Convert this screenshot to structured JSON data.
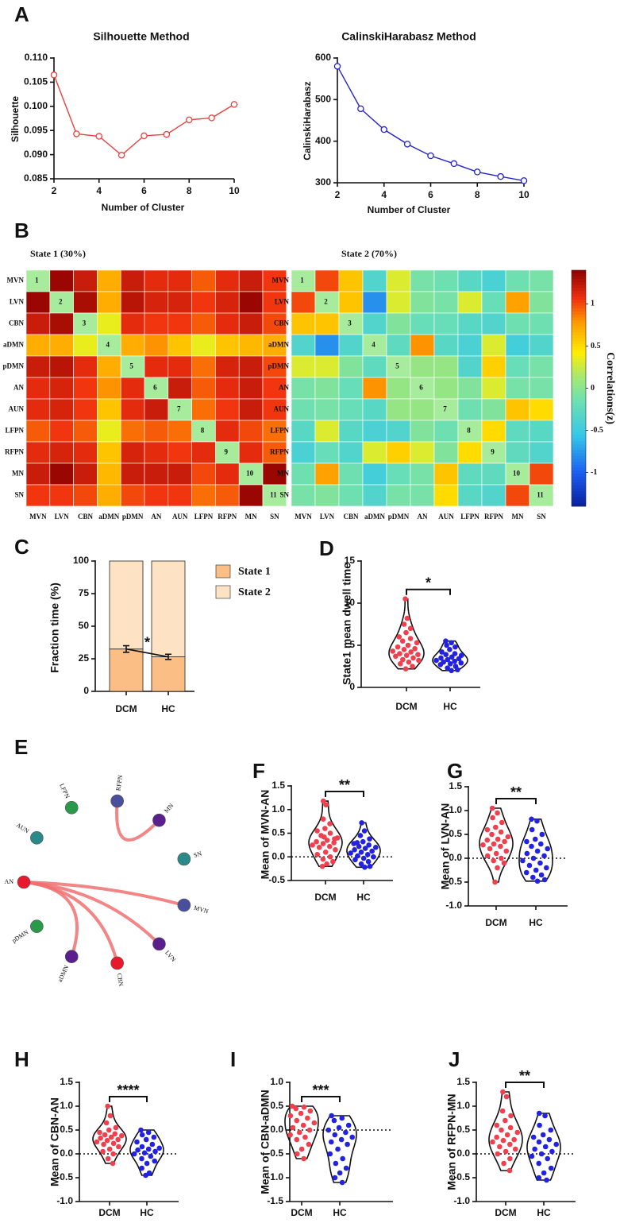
{
  "chart_data": [
    {
      "type": "line",
      "label": "A",
      "title": "Silhouette Method",
      "xlabel": "Number of Cluster",
      "ylabel": "Silhouette",
      "x": [
        2,
        3,
        4,
        5,
        6,
        7,
        8,
        9,
        10
      ],
      "values": [
        0.1065,
        0.0943,
        0.0938,
        0.0899,
        0.0939,
        0.0942,
        0.0972,
        0.0976,
        0.1004
      ],
      "color": "#e8413e",
      "xlim": [
        2,
        10
      ],
      "xticks": [
        2,
        4,
        6,
        8,
        10
      ],
      "ylim": [
        0.085,
        0.11
      ],
      "yticks": [
        0.085,
        {
          "value": 0.09,
          "label": "0.090"
        },
        0.095,
        {
          "value": 0.1,
          "label": "0.100"
        },
        0.105,
        {
          "value": 0.11,
          "label": "0.110"
        }
      ]
    },
    {
      "type": "line",
      "title": "CalinskiHarabasz Method",
      "xlabel": "Number of Cluster",
      "ylabel": "CalinskiHarabasz",
      "x": [
        2,
        3,
        4,
        5,
        6,
        7,
        8,
        9,
        10
      ],
      "values": [
        580,
        478,
        428,
        393,
        365,
        346,
        326,
        315,
        305
      ],
      "color": "#2323c8",
      "xlim": [
        2,
        10
      ],
      "xticks": [
        2,
        4,
        6,
        8,
        10
      ],
      "ylim": [
        300,
        600
      ],
      "yticks": [
        300,
        400,
        500,
        600
      ]
    },
    {
      "type": "heatmap",
      "label": "B",
      "title": "State 1 (30%)",
      "labels": [
        "MVN",
        "LVN",
        "CBN",
        "aDMN",
        "pDMN",
        "AN",
        "AUN",
        "LFPN",
        "RFPN",
        "MN",
        "SN"
      ],
      "diagonal_labels": [
        1,
        2,
        3,
        4,
        5,
        6,
        7,
        8,
        9,
        10,
        11
      ],
      "clim": [
        -1.4,
        1.4
      ],
      "matrix": [
        [
          null,
          1.35,
          1.2,
          0.7,
          1.2,
          1.1,
          1.1,
          0.95,
          1.1,
          1.2,
          1.05
        ],
        [
          1.35,
          null,
          1.3,
          0.7,
          1.25,
          1.15,
          1.15,
          1.05,
          1.15,
          1.35,
          1.05
        ],
        [
          1.2,
          1.3,
          null,
          0.35,
          1.1,
          1.05,
          1.05,
          0.95,
          1.1,
          1.2,
          1.0
        ],
        [
          0.7,
          0.7,
          0.35,
          null,
          0.7,
          0.8,
          0.6,
          0.35,
          0.6,
          0.65,
          0.7
        ],
        [
          1.2,
          1.25,
          1.1,
          0.7,
          null,
          1.1,
          1.1,
          0.9,
          1.15,
          1.2,
          1.0
        ],
        [
          1.1,
          1.15,
          1.05,
          0.8,
          1.1,
          null,
          1.2,
          0.95,
          1.1,
          1.2,
          1.05
        ],
        [
          1.1,
          1.15,
          1.05,
          0.6,
          1.1,
          1.2,
          null,
          0.9,
          1.05,
          1.2,
          1.05
        ],
        [
          0.95,
          1.05,
          0.95,
          0.35,
          0.9,
          0.95,
          0.9,
          null,
          1.1,
          1.0,
          0.9
        ],
        [
          1.1,
          1.15,
          1.1,
          0.6,
          1.15,
          1.1,
          1.05,
          1.1,
          null,
          1.1,
          0.95
        ],
        [
          1.2,
          1.35,
          1.2,
          0.65,
          1.2,
          1.2,
          1.2,
          1.0,
          1.1,
          null,
          1.35
        ],
        [
          1.05,
          1.05,
          1.0,
          0.7,
          1.0,
          1.05,
          1.05,
          0.9,
          0.95,
          1.35,
          null
        ]
      ]
    },
    {
      "type": "heatmap",
      "title": "State 2 (70%)",
      "labels": [
        "MVN",
        "LVN",
        "CBN",
        "aDMN",
        "pDMN",
        "AN",
        "AUN",
        "LFPN",
        "RFPN",
        "MN",
        "SN"
      ],
      "diagonal_labels": [
        1,
        2,
        3,
        4,
        5,
        6,
        7,
        8,
        9,
        10,
        11
      ],
      "clim": [
        -1.4,
        1.4
      ],
      "colorbar": {
        "label": "Correlations(z)",
        "ticks": [
          -1,
          -0.5,
          0,
          0.5,
          1
        ]
      },
      "matrix": [
        [
          null,
          1.0,
          0.6,
          -0.35,
          0.3,
          -0.1,
          -0.15,
          -0.3,
          -0.4,
          -0.15,
          -0.1
        ],
        [
          1.0,
          null,
          0.6,
          -0.8,
          0.3,
          -0.05,
          -0.1,
          0.3,
          -0.2,
          0.75,
          -0.05
        ],
        [
          0.6,
          0.6,
          null,
          -0.35,
          -0.05,
          -0.2,
          -0.2,
          -0.3,
          -0.35,
          -0.15,
          -0.15
        ],
        [
          -0.35,
          -0.8,
          -0.35,
          null,
          -0.25,
          0.8,
          -0.3,
          -0.4,
          0.3,
          -0.45,
          -0.35
        ],
        [
          0.3,
          0.3,
          -0.05,
          -0.25,
          null,
          0.05,
          0.05,
          -0.35,
          0.55,
          -0.2,
          -0.1
        ],
        [
          -0.1,
          -0.05,
          -0.2,
          0.8,
          0.05,
          null,
          0.05,
          -0.05,
          0.3,
          -0.1,
          -0.1
        ],
        [
          -0.15,
          -0.1,
          -0.2,
          -0.3,
          0.05,
          0.05,
          null,
          -0.15,
          -0.05,
          0.6,
          0.5
        ],
        [
          -0.3,
          0.3,
          -0.3,
          -0.4,
          -0.35,
          -0.05,
          -0.15,
          null,
          0.5,
          -0.25,
          -0.3
        ],
        [
          -0.4,
          -0.2,
          -0.35,
          0.3,
          0.55,
          0.3,
          -0.05,
          0.5,
          null,
          -0.25,
          -0.35
        ],
        [
          -0.15,
          0.75,
          -0.15,
          -0.45,
          -0.2,
          -0.1,
          0.6,
          -0.25,
          -0.25,
          null,
          1.0
        ],
        [
          -0.1,
          -0.05,
          -0.15,
          -0.35,
          -0.1,
          -0.1,
          0.5,
          -0.3,
          -0.35,
          1.0,
          null
        ]
      ]
    },
    {
      "type": "stacked_bar",
      "label": "C",
      "ylabel": "Fraction time (%)",
      "categories": [
        "DCM",
        "HC"
      ],
      "series": [
        {
          "name": "State 1",
          "color": "#fbbf86",
          "values": [
            32.5,
            26.5
          ],
          "errors": [
            2.5,
            2
          ]
        },
        {
          "name": "State 2",
          "color": "#fde3c4",
          "values": [
            67.5,
            73.5
          ]
        }
      ],
      "ylim": [
        0,
        100
      ],
      "yticks": [
        0,
        25,
        50,
        75,
        100
      ],
      "annotation": "*"
    },
    {
      "type": "violin",
      "label": "D",
      "ylabel": "State1 mean dwell time",
      "categories": [
        "DCM",
        "HC"
      ],
      "annotation": "*",
      "ylim": [
        0,
        15
      ],
      "yticks": [
        0,
        5,
        10,
        15
      ],
      "zero_line": false,
      "groups": [
        {
          "color": "#f0404e",
          "values": [
            10.5,
            8.2,
            7.5,
            7,
            6.5,
            6,
            5.8,
            5.5,
            5.3,
            5,
            4.8,
            4.6,
            4.5,
            4.3,
            4.2,
            4,
            3.9,
            3.8,
            3.7,
            3.5,
            3.3,
            3.2,
            3,
            2.8,
            2.5,
            2.2
          ]
        },
        {
          "color": "#2222e0",
          "values": [
            5.5,
            5.3,
            5,
            4.8,
            4.5,
            4.2,
            4,
            3.9,
            3.8,
            3.6,
            3.5,
            3.4,
            3.3,
            3.2,
            3.1,
            3,
            2.9,
            2.8,
            2.7,
            2.5,
            2.3,
            2.1,
            2
          ]
        }
      ]
    },
    {
      "type": "network",
      "label": "E",
      "edge_color": "#f07070",
      "nodes": [
        {
          "label": "AN",
          "color": "#e8192c"
        },
        {
          "label": "AUN",
          "color": "#2a8a8a"
        },
        {
          "label": "LFPN",
          "color": "#2a9a4a"
        },
        {
          "label": "RFPN",
          "color": "#4a4f9c"
        },
        {
          "label": "MN",
          "color": "#5a1f8c"
        },
        {
          "label": "SN",
          "color": "#2a8a8a"
        },
        {
          "label": "MVN",
          "color": "#4a4f9c"
        },
        {
          "label": "LVN",
          "color": "#5a1f8c"
        },
        {
          "label": "CBN",
          "color": "#e8192c"
        },
        {
          "label": "aDMN",
          "color": "#5a1f8c"
        },
        {
          "label": "pDMN",
          "color": "#2a9a4a"
        }
      ],
      "edges": [
        [
          "RFPN",
          "MN"
        ],
        [
          "AN",
          "MVN"
        ],
        [
          "AN",
          "LVN"
        ],
        [
          "AN",
          "CBN"
        ],
        [
          "AN",
          "aDMN"
        ]
      ]
    },
    {
      "type": "violin",
      "label": "F",
      "ylabel": "Mean of MVN-AN",
      "categories": [
        "DCM",
        "HC"
      ],
      "annotation": "**",
      "ylim": [
        -0.5,
        1.5
      ],
      "yticks": [
        -0.5,
        {
          "value": 0,
          "label": "0.0"
        },
        0.5,
        {
          "value": 1,
          "label": "1.0"
        },
        1.5
      ],
      "zero_line": true,
      "groups": [
        {
          "color": "#f0404e",
          "values": [
            1.18,
            1.1,
            0.8,
            0.7,
            0.6,
            0.55,
            0.5,
            0.45,
            0.4,
            0.35,
            0.32,
            0.3,
            0.28,
            0.25,
            0.22,
            0.2,
            0.15,
            0.1,
            0.05,
            0,
            -0.05,
            -0.1,
            -0.15,
            -0.2,
            0.38,
            0.42
          ]
        },
        {
          "color": "#2222e0",
          "values": [
            0.72,
            0.55,
            0.45,
            0.38,
            0.32,
            0.28,
            0.25,
            0.22,
            0.2,
            0.18,
            0.15,
            0.12,
            0.1,
            0.08,
            0.05,
            0.02,
            0,
            -0.03,
            -0.06,
            -0.1,
            -0.15,
            -0.2,
            -0.22,
            0.3
          ]
        }
      ]
    },
    {
      "type": "violin",
      "label": "G",
      "ylabel": "Mean of LVN-AN",
      "categories": [
        "DCM",
        "HC"
      ],
      "annotation": "**",
      "ylim": [
        -1,
        1.5
      ],
      "yticks": [
        {
          "value": -1,
          "label": "-1.0"
        },
        -0.5,
        {
          "value": 0,
          "label": "0.0"
        },
        0.5,
        {
          "value": 1,
          "label": "1.0"
        },
        1.5
      ],
      "zero_line": true,
      "groups": [
        {
          "color": "#f0404e",
          "values": [
            1.05,
            0.95,
            0.85,
            0.75,
            0.65,
            0.6,
            0.55,
            0.5,
            0.45,
            0.4,
            0.38,
            0.35,
            0.3,
            0.28,
            0.25,
            0.2,
            0.15,
            0.1,
            0.05,
            0,
            -0.05,
            -0.1,
            -0.2,
            -0.5
          ]
        },
        {
          "color": "#2222e0",
          "values": [
            0.82,
            0.78,
            0.6,
            0.5,
            0.4,
            0.35,
            0.3,
            0.25,
            0.2,
            0.15,
            0.1,
            0.05,
            0,
            -0.05,
            -0.1,
            -0.15,
            -0.2,
            -0.25,
            -0.3,
            -0.35,
            -0.4,
            -0.45,
            -0.48
          ]
        }
      ]
    },
    {
      "type": "violin",
      "label": "H",
      "ylabel": "Mean of CBN-AN",
      "categories": [
        "DCM",
        "HC"
      ],
      "annotation": "****",
      "ylim": [
        -1,
        1.5
      ],
      "yticks": [
        {
          "value": -1,
          "label": "-1.0"
        },
        -0.5,
        {
          "value": 0,
          "label": "0.0"
        },
        0.5,
        {
          "value": 1,
          "label": "1.0"
        },
        1.5
      ],
      "zero_line": true,
      "groups": [
        {
          "color": "#f0404e",
          "values": [
            1.0,
            0.8,
            0.65,
            0.55,
            0.5,
            0.45,
            0.42,
            0.4,
            0.38,
            0.35,
            0.33,
            0.3,
            0.28,
            0.25,
            0.22,
            0.2,
            0.15,
            0.1,
            0.05,
            0,
            -0.1,
            -0.2
          ]
        },
        {
          "color": "#2222e0",
          "values": [
            0.5,
            0.45,
            0.4,
            0.35,
            0.3,
            0.25,
            0.2,
            0.15,
            0.12,
            0.1,
            0.08,
            0.05,
            0.02,
            0,
            -0.05,
            -0.1,
            -0.15,
            -0.2,
            -0.3,
            -0.4,
            -0.45
          ]
        }
      ]
    },
    {
      "type": "violin",
      "label": "I",
      "ylabel": "Mean of CBN-aDMN",
      "categories": [
        "DCM",
        "HC"
      ],
      "annotation": "***",
      "ylim": [
        -1.5,
        1
      ],
      "yticks": [
        -1.5,
        {
          "value": -1,
          "label": "-1.0"
        },
        -0.5,
        {
          "value": 0,
          "label": "0.0"
        },
        0.5,
        {
          "value": 1,
          "label": "1.0"
        }
      ],
      "zero_line": true,
      "groups": [
        {
          "color": "#f0404e",
          "values": [
            0.5,
            0.48,
            0.45,
            0.4,
            0.35,
            0.3,
            0.25,
            0.2,
            0.15,
            0.1,
            0.05,
            0,
            -0.05,
            -0.1,
            -0.15,
            -0.2,
            -0.3,
            -0.4,
            -0.5,
            -0.6
          ]
        },
        {
          "color": "#2222e0",
          "values": [
            0.3,
            0.25,
            0.2,
            0.1,
            0.05,
            0,
            -0.05,
            -0.1,
            -0.15,
            -0.2,
            -0.25,
            -0.3,
            -0.4,
            -0.5,
            -0.6,
            -0.7,
            -0.8,
            -0.9,
            -1.0,
            -1.1
          ]
        }
      ]
    },
    {
      "type": "violin",
      "label": "J",
      "ylabel": "Mean of RFPN-MN",
      "categories": [
        "DCM",
        "HC"
      ],
      "annotation": "**",
      "ylim": [
        -1,
        1.5
      ],
      "yticks": [
        {
          "value": -1,
          "label": "-1.0"
        },
        -0.5,
        {
          "value": 0,
          "label": "0.0"
        },
        0.5,
        {
          "value": 1,
          "label": "1.0"
        },
        1.5
      ],
      "zero_line": true,
      "groups": [
        {
          "color": "#f0404e",
          "values": [
            1.3,
            1.2,
            0.9,
            0.8,
            0.7,
            0.6,
            0.55,
            0.5,
            0.45,
            0.4,
            0.35,
            0.3,
            0.28,
            0.25,
            0.2,
            0.15,
            0.1,
            0.05,
            0,
            -0.1,
            -0.2,
            -0.35
          ]
        },
        {
          "color": "#2222e0",
          "values": [
            0.85,
            0.8,
            0.6,
            0.5,
            0.4,
            0.35,
            0.3,
            0.25,
            0.2,
            0.15,
            0.1,
            0.05,
            0,
            -0.05,
            -0.1,
            -0.2,
            -0.3,
            -0.4,
            -0.5,
            -0.55
          ]
        }
      ]
    }
  ]
}
